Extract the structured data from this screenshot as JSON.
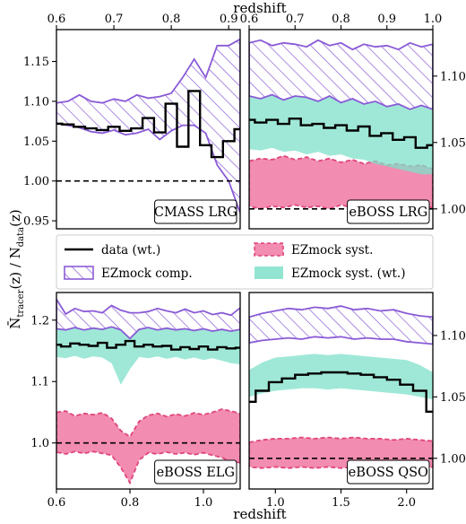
{
  "colors": {
    "data": "#000000",
    "comp": "#8a5bd6",
    "syst": "#f28cb1",
    "syst_edge": "#e0457b",
    "systwt": "#7fe0c9",
    "ref": "#000000"
  },
  "legend": {
    "data": "data (wt.)",
    "comp": "EZmock comp.",
    "syst": "EZmock syst.",
    "systwt": "EZmock syst. (wt.)"
  },
  "axes": {
    "top_xlabel": "redshift",
    "bottom_xlabel": "redshift",
    "ylabel_main": "N̄",
    "ylabel_sub": "tracer",
    "ylabel_mid": "(z) / N",
    "ylabel_sub2": "data",
    "ylabel_end": "(z)"
  },
  "chart_data": [
    {
      "id": "cmass",
      "label": "CMASS LRG",
      "type": "line",
      "xlim": [
        0.6,
        0.92
      ],
      "ylim": [
        0.94,
        1.19
      ],
      "xticks": [
        0.6,
        0.7,
        0.8,
        0.9
      ],
      "xtick_labels": [
        "0.6",
        "0.7",
        "0.8",
        "0.9"
      ],
      "yticks": [
        0.95,
        1.0,
        1.05,
        1.1,
        1.15
      ],
      "ytick_labels": [
        "0.95",
        "1.00",
        "1.05",
        "1.10",
        "1.15"
      ],
      "x": [
        0.6,
        0.62,
        0.64,
        0.66,
        0.68,
        0.7,
        0.72,
        0.74,
        0.76,
        0.78,
        0.8,
        0.82,
        0.84,
        0.86,
        0.88,
        0.9,
        0.92
      ],
      "data": [
        1.072,
        1.071,
        1.068,
        1.066,
        1.064,
        1.068,
        1.063,
        1.066,
        1.079,
        1.061,
        1.097,
        1.043,
        1.113,
        1.045,
        1.03,
        1.05,
        1.065
      ],
      "comp_upper": [
        1.098,
        1.1,
        1.108,
        1.1,
        1.098,
        1.103,
        1.1,
        1.108,
        1.104,
        1.106,
        1.11,
        1.13,
        1.153,
        1.13,
        1.17,
        1.17,
        1.178
      ],
      "comp_lower": [
        1.072,
        1.07,
        1.067,
        1.062,
        1.06,
        1.064,
        1.058,
        1.06,
        1.065,
        1.052,
        1.063,
        1.07,
        1.07,
        1.06,
        1.02,
        1.0,
        0.96
      ]
    },
    {
      "id": "eboss_lrg",
      "label": "eBOSS LRG",
      "type": "line",
      "xlim": [
        0.6,
        1.0
      ],
      "ylim": [
        0.985,
        1.135
      ],
      "xticks": [
        0.6,
        0.7,
        0.8,
        0.9,
        1.0
      ],
      "xtick_labels": [
        "0.6",
        "0.7",
        "0.8",
        "0.9",
        "1.0"
      ],
      "yticks": [
        1.0,
        1.05,
        1.1
      ],
      "ytick_labels": [
        "1.00",
        "1.05",
        "1.10"
      ],
      "x": [
        0.6,
        0.625,
        0.65,
        0.675,
        0.7,
        0.725,
        0.75,
        0.775,
        0.8,
        0.825,
        0.85,
        0.875,
        0.9,
        0.925,
        0.95,
        0.975,
        1.0
      ],
      "data": [
        1.067,
        1.065,
        1.067,
        1.064,
        1.068,
        1.063,
        1.064,
        1.061,
        1.063,
        1.059,
        1.062,
        1.055,
        1.057,
        1.052,
        1.054,
        1.046,
        1.048
      ],
      "comp_upper": [
        1.125,
        1.127,
        1.123,
        1.125,
        1.124,
        1.122,
        1.127,
        1.123,
        1.125,
        1.12,
        1.124,
        1.122,
        1.123,
        1.12,
        1.125,
        1.122,
        1.124
      ],
      "comp_lower": [
        1.085,
        1.083,
        1.086,
        1.082,
        1.085,
        1.084,
        1.081,
        1.085,
        1.08,
        1.083,
        1.079,
        1.081,
        1.077,
        1.079,
        1.075,
        1.078,
        1.075
      ],
      "systwt_upper": [
        1.085,
        1.083,
        1.086,
        1.082,
        1.085,
        1.084,
        1.081,
        1.085,
        1.08,
        1.083,
        1.079,
        1.081,
        1.077,
        1.079,
        1.075,
        1.078,
        1.075
      ],
      "systwt_lower": [
        1.045,
        1.044,
        1.046,
        1.043,
        1.044,
        1.041,
        1.043,
        1.04,
        1.041,
        1.038,
        1.037,
        1.034,
        1.032,
        1.03,
        1.028,
        1.026,
        1.026
      ],
      "syst_upper": [
        1.036,
        1.038,
        1.037,
        1.04,
        1.037,
        1.039,
        1.036,
        1.038,
        1.035,
        1.037,
        1.034,
        1.036,
        1.033,
        1.034,
        1.032,
        1.033,
        1.03
      ],
      "syst_lower": [
        1.002,
        1.0,
        1.002,
        1.001,
        1.003,
        1.001,
        1.002,
        1.0,
        1.003,
        1.001,
        1.002,
        1.0,
        1.002,
        1.001,
        1.0,
        1.002,
        1.001
      ]
    },
    {
      "id": "eboss_elg",
      "label": "eBOSS ELG",
      "type": "line",
      "xlim": [
        0.6,
        1.1
      ],
      "ylim": [
        0.925,
        1.245
      ],
      "xticks": [
        0.6,
        0.8,
        1.0
      ],
      "xtick_labels": [
        "0.6",
        "0.8",
        "1.0"
      ],
      "yticks": [
        1.0,
        1.1,
        1.2
      ],
      "ytick_labels": [
        "1.0",
        "1.1",
        "1.2"
      ],
      "x": [
        0.6,
        0.625,
        0.65,
        0.675,
        0.7,
        0.725,
        0.75,
        0.775,
        0.8,
        0.825,
        0.85,
        0.875,
        0.9,
        0.925,
        0.95,
        0.975,
        1.0,
        1.025,
        1.05,
        1.075,
        1.1
      ],
      "data": [
        1.16,
        1.157,
        1.162,
        1.16,
        1.158,
        1.163,
        1.155,
        1.16,
        1.166,
        1.157,
        1.16,
        1.157,
        1.158,
        1.152,
        1.156,
        1.153,
        1.157,
        1.152,
        1.156,
        1.154,
        1.155
      ],
      "comp_upper": [
        1.234,
        1.21,
        1.219,
        1.214,
        1.215,
        1.212,
        1.224,
        1.216,
        1.212,
        1.212,
        1.214,
        1.219,
        1.215,
        1.212,
        1.218,
        1.212,
        1.215,
        1.209,
        1.212,
        1.208,
        1.22
      ],
      "comp_lower": [
        1.186,
        1.184,
        1.188,
        1.184,
        1.187,
        1.185,
        1.189,
        1.184,
        1.17,
        1.185,
        1.188,
        1.184,
        1.187,
        1.184,
        1.186,
        1.183,
        1.186,
        1.182,
        1.185,
        1.182,
        1.185
      ],
      "systwt_upper": [
        1.186,
        1.184,
        1.188,
        1.184,
        1.187,
        1.185,
        1.189,
        1.184,
        1.17,
        1.185,
        1.188,
        1.184,
        1.187,
        1.184,
        1.186,
        1.183,
        1.186,
        1.182,
        1.185,
        1.182,
        1.185
      ],
      "systwt_lower": [
        1.14,
        1.138,
        1.142,
        1.137,
        1.141,
        1.139,
        1.13,
        1.095,
        1.12,
        1.14,
        1.138,
        1.141,
        1.137,
        1.14,
        1.136,
        1.139,
        1.135,
        1.138,
        1.134,
        1.13,
        1.128
      ],
      "syst_upper": [
        1.05,
        1.052,
        1.044,
        1.048,
        1.046,
        1.049,
        1.04,
        1.02,
        1.01,
        1.035,
        1.045,
        1.048,
        1.043,
        1.047,
        1.044,
        1.049,
        1.046,
        1.05,
        1.055,
        1.052,
        1.048
      ],
      "syst_lower": [
        0.985,
        0.982,
        0.986,
        0.983,
        0.986,
        0.983,
        0.98,
        0.96,
        0.935,
        0.972,
        0.984,
        0.982,
        0.985,
        0.982,
        0.984,
        0.981,
        0.984,
        0.98,
        0.976,
        0.97,
        0.968
      ]
    },
    {
      "id": "eboss_qso",
      "label": "eBOSS QSO",
      "type": "line",
      "xlim": [
        0.8,
        2.2
      ],
      "ylim": [
        0.975,
        1.135
      ],
      "xticks": [
        1.0,
        1.5,
        2.0
      ],
      "xtick_labels": [
        "1.0",
        "1.5",
        "2.0"
      ],
      "yticks": [
        1.0,
        1.05,
        1.1
      ],
      "ytick_labels": [
        "1.00",
        "1.05",
        "1.10"
      ],
      "x": [
        0.8,
        0.9,
        1.0,
        1.1,
        1.2,
        1.3,
        1.4,
        1.5,
        1.6,
        1.7,
        1.8,
        1.9,
        2.0,
        2.1,
        2.2
      ],
      "data": [
        1.046,
        1.055,
        1.062,
        1.065,
        1.068,
        1.069,
        1.07,
        1.07,
        1.069,
        1.068,
        1.066,
        1.064,
        1.06,
        1.055,
        1.038
      ],
      "comp_upper": [
        1.115,
        1.118,
        1.12,
        1.122,
        1.121,
        1.123,
        1.122,
        1.124,
        1.121,
        1.122,
        1.12,
        1.121,
        1.118,
        1.116,
        1.115
      ],
      "comp_lower": [
        1.094,
        1.096,
        1.097,
        1.098,
        1.097,
        1.099,
        1.098,
        1.099,
        1.097,
        1.098,
        1.097,
        1.097,
        1.095,
        1.094,
        1.093
      ],
      "systwt_upper": [
        1.072,
        1.078,
        1.082,
        1.083,
        1.084,
        1.085,
        1.084,
        1.085,
        1.084,
        1.083,
        1.082,
        1.081,
        1.08,
        1.076,
        1.07
      ],
      "systwt_lower": [
        1.05,
        1.053,
        1.055,
        1.056,
        1.057,
        1.057,
        1.056,
        1.057,
        1.056,
        1.055,
        1.054,
        1.053,
        1.052,
        1.05,
        1.048
      ],
      "syst_upper": [
        1.013,
        1.015,
        1.016,
        1.016,
        1.017,
        1.016,
        1.017,
        1.016,
        1.017,
        1.016,
        1.016,
        1.015,
        1.016,
        1.015,
        1.014
      ],
      "syst_lower": [
        0.993,
        0.992,
        0.993,
        0.992,
        0.993,
        0.992,
        0.993,
        0.992,
        0.993,
        0.992,
        0.993,
        0.992,
        0.993,
        0.992,
        0.993
      ]
    }
  ]
}
